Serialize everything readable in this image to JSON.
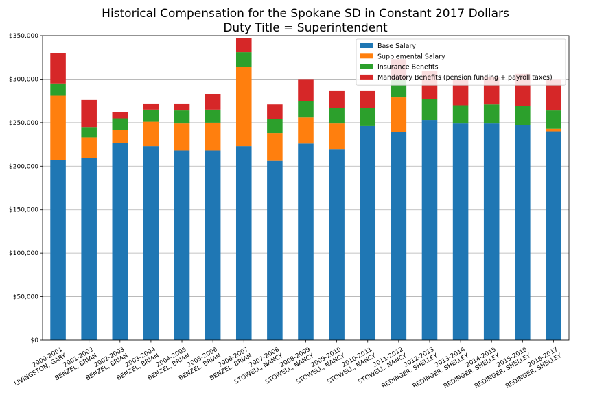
{
  "chart_data": {
    "type": "bar",
    "stacked": true,
    "title": "Historical Compensation for the Spokane SD in Constant 2017 Dollars",
    "subtitle": "Duty Title = Superintendent",
    "xlabel": "",
    "ylabel": "",
    "ylim": [
      0,
      350000
    ],
    "yticks": [
      "$0",
      "$50,000",
      "$100,000",
      "$150,000",
      "$200,000",
      "$250,000",
      "$300,000",
      "$350,000"
    ],
    "ytick_values": [
      0,
      50000,
      100000,
      150000,
      200000,
      250000,
      300000,
      350000
    ],
    "grid": "horizontal",
    "legend_position": "top-right",
    "categories": [
      [
        "2000-2001",
        "LIVINGSTON, GARY"
      ],
      [
        "2001-2002",
        "BENZEL, BRIAN"
      ],
      [
        "2002-2003",
        "BENZEL, BRIAN"
      ],
      [
        "2003-2004",
        "BENZEL, BRIAN"
      ],
      [
        "2004-2005",
        "BENZEL, BRIAN"
      ],
      [
        "2005-2006",
        "BENZEL, BRIAN"
      ],
      [
        "2006-2007",
        "BENZEL, BRIAN"
      ],
      [
        "2007-2008",
        "STOWELL, NANCY"
      ],
      [
        "2008-2009",
        "STOWELL, NANCY"
      ],
      [
        "2009-2010",
        "STOWELL, NANCY"
      ],
      [
        "2010-2011",
        "STOWELL, NANCY"
      ],
      [
        "2011-2012",
        "STOWELL, NANCY"
      ],
      [
        "2012-2013",
        "REDINGER, SHELLEY"
      ],
      [
        "2013-2014",
        "REDINGER, SHELLEY"
      ],
      [
        "2014-2015",
        "REDINGER, SHELLEY"
      ],
      [
        "2015-2016",
        "REDINGER, SHELLEY"
      ],
      [
        "2016-2017",
        "REDINGER, SHELLEY"
      ]
    ],
    "series": [
      {
        "name": "Base Salary",
        "color": "#1f77b4",
        "values": [
          207000,
          209000,
          227000,
          223000,
          218000,
          218000,
          223000,
          206000,
          226000,
          219000,
          246000,
          239000,
          253000,
          249000,
          249000,
          247000,
          240000
        ]
      },
      {
        "name": "Supplemental Salary",
        "color": "#ff7f0e",
        "values": [
          74000,
          24000,
          15000,
          28000,
          31000,
          32000,
          91000,
          32000,
          30000,
          30000,
          0,
          40000,
          0,
          0,
          0,
          0,
          3000
        ]
      },
      {
        "name": "Insurance Benefits",
        "color": "#2ca02c",
        "values": [
          14000,
          12000,
          13000,
          14000,
          15000,
          15000,
          17000,
          16000,
          19000,
          18000,
          21000,
          20000,
          24000,
          21000,
          22000,
          22000,
          21000
        ]
      },
      {
        "name": "Mandatory Benefits (pension funding + payroll taxes)",
        "color": "#d62728",
        "values": [
          35000,
          31000,
          7000,
          7000,
          8000,
          18000,
          16000,
          17000,
          25000,
          20000,
          20000,
          24000,
          32000,
          30000,
          31000,
          37000,
          36000
        ]
      }
    ]
  }
}
